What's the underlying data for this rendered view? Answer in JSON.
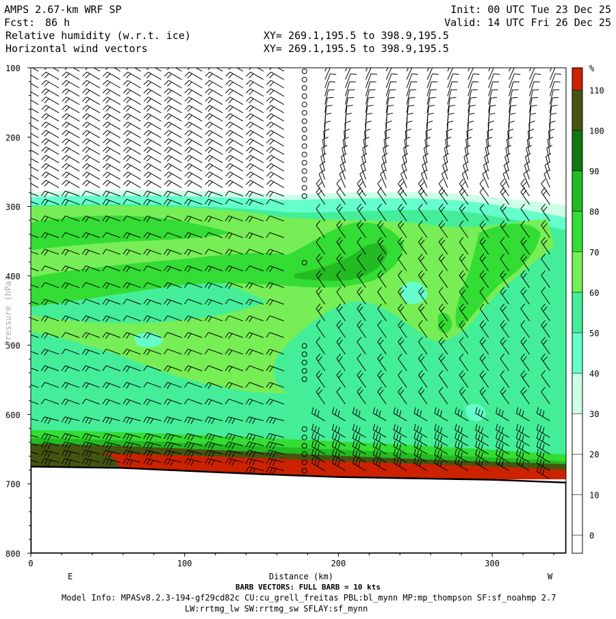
{
  "header": {
    "model": "AMPS 2.67-km WRF SP",
    "forecast_label": "Fcst:",
    "forecast_value": "86 h",
    "field1": "Relative humidity (w.r.t. ice)",
    "field2": "Horizontal wind vectors",
    "init": "Init: 00 UTC Tue 23 Dec 25",
    "valid": "Valid: 14 UTC Fri 26 Dec 25",
    "xy1": "XY= 269.1,195.5 to 398.9,195.5",
    "xy2": "XY= 269.1,195.5 to 398.9,195.5"
  },
  "footer": {
    "barb_note": "BARB VECTORS:  FULL BARB = 10 kts",
    "model_info": "Model Info: MPASv8.2.3-194-gf29cd82c CU:cu_grell_freitas PBL:bl_mynn MP:mp_thompson SF:sf_noahmp 2.7",
    "model_info2": "LW:rrtmg_lw SW:rrtmg_sw SFLAY:sf_mynn"
  },
  "chart_data": {
    "type": "heatmap",
    "title": "Relative humidity (w.r.t. ice)",
    "xlabel": "Distance (km)",
    "ylabel": "Pressure (hPa)",
    "x_ticks": [
      0,
      100,
      200,
      300
    ],
    "y_ticks": [
      100,
      200,
      300,
      400,
      500,
      600,
      700,
      800
    ],
    "xlim": [
      0,
      348
    ],
    "ylim": [
      800,
      100
    ],
    "x_end_labels": {
      "left": "E",
      "right": "W"
    },
    "colorbar": {
      "unit": "%",
      "levels": [
        0,
        10,
        20,
        30,
        40,
        50,
        60,
        70,
        80,
        90,
        100,
        110
      ],
      "colors": {
        "below_30": "#ffffff",
        "30_40": "#ccffe6",
        "40_50": "#66ffcc",
        "50_60": "#44ee99",
        "60_70": "#77ee55",
        "70_80": "#33dd33",
        "80_90": "#22bb22",
        "90_100": "#117711",
        "100_110": "#445511",
        "above_110": "#cc2200"
      }
    },
    "terrain_pressure": [
      {
        "x": 0,
        "p": 675
      },
      {
        "x": 60,
        "p": 677
      },
      {
        "x": 100,
        "p": 681
      },
      {
        "x": 150,
        "p": 686
      },
      {
        "x": 200,
        "p": 690
      },
      {
        "x": 250,
        "p": 692
      },
      {
        "x": 300,
        "p": 694
      },
      {
        "x": 348,
        "p": 698
      }
    ],
    "humid_layer_top_pressure": 282,
    "calm_column_x": 173,
    "wind_barbs": "Horizontal wind vectors on pressure levels; full barb = 10 kts"
  }
}
